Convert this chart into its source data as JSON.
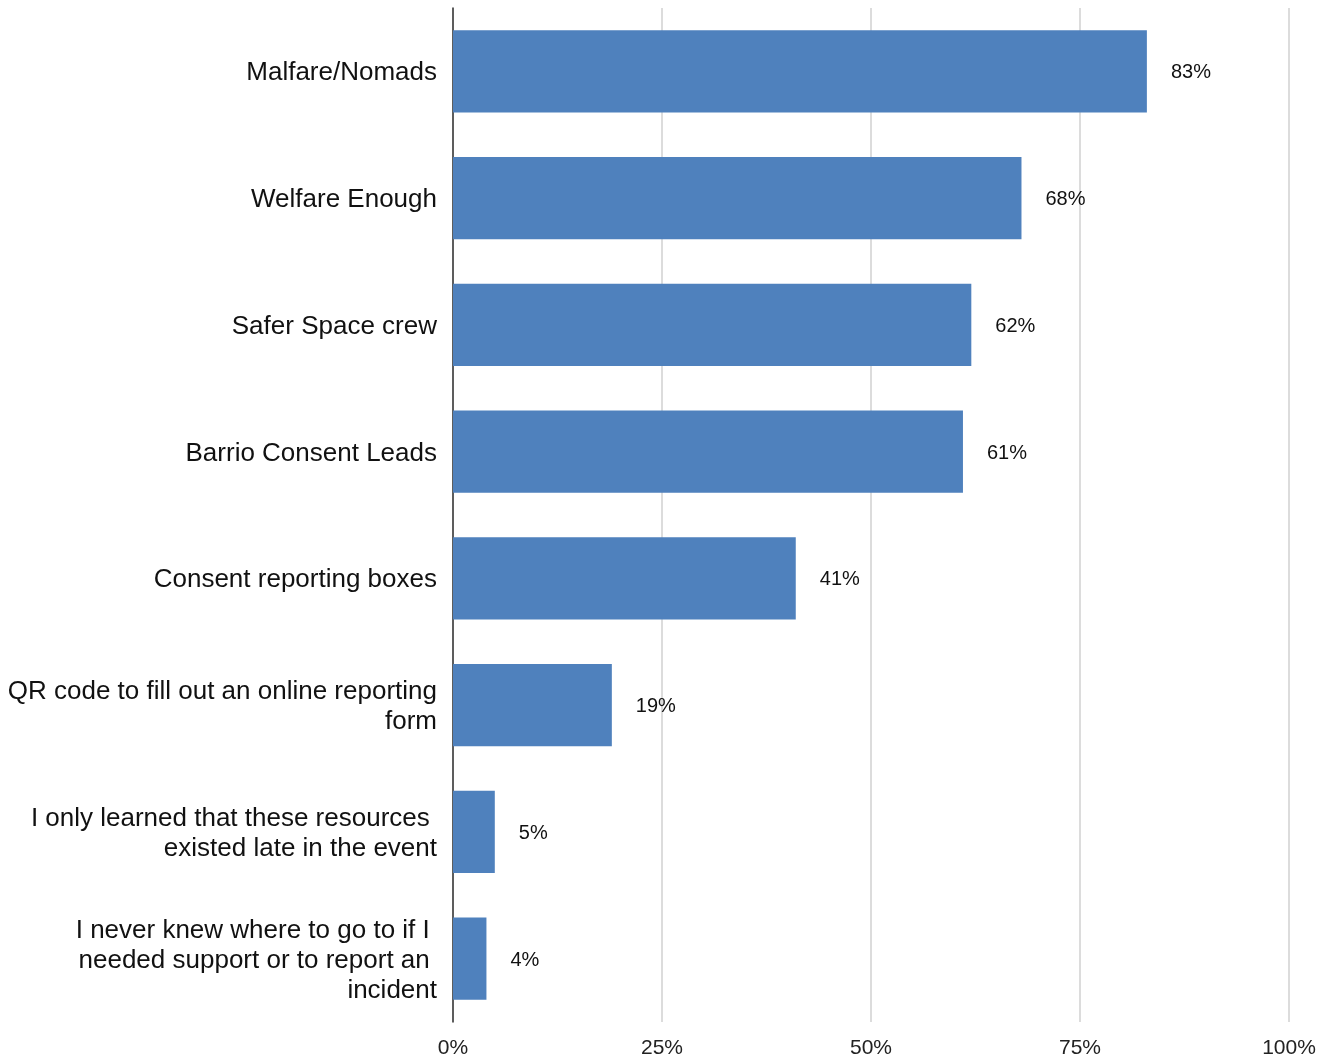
{
  "chart_data": {
    "type": "bar",
    "orientation": "horizontal",
    "categories": [
      "Malfare/Nomads",
      "Welfare Enough",
      "Safer Space crew",
      "Barrio Consent Leads",
      "Consent reporting boxes",
      "QR code to fill out an online reporting form",
      "I only learned that these resources existed late in the event",
      "I never knew where to go to if I needed support or to report an incident"
    ],
    "values": [
      83,
      68,
      62,
      61,
      41,
      19,
      5,
      4
    ],
    "value_labels": [
      "83%",
      "68%",
      "62%",
      "61%",
      "41%",
      "19%",
      "5%",
      "4%"
    ],
    "color": "#4f81bd",
    "xlim": [
      0,
      100
    ],
    "xticks": [
      {
        "value": 0,
        "label": "0%"
      },
      {
        "value": 25,
        "label": "25%"
      },
      {
        "value": 50,
        "label": "50%"
      },
      {
        "value": 75,
        "label": "75%"
      },
      {
        "value": 100,
        "label": "100%"
      }
    ],
    "grid": "x"
  }
}
